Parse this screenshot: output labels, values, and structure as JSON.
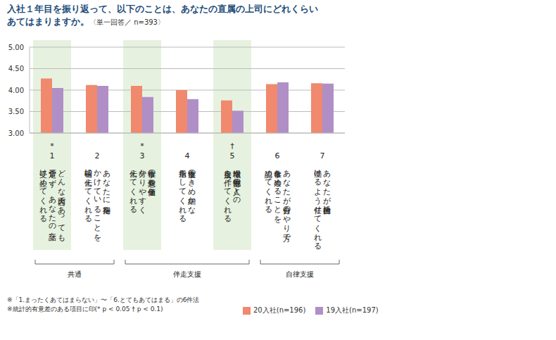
{
  "chart_data": {
    "type": "bar",
    "title": [
      "入社１年目を振り返って、以下のことは、あなたの直属の上司にどれくらい",
      "あてはまりますか。"
    ],
    "subtitle": "〈単一回答／ n=393〉",
    "categories": [
      "1",
      "2",
      "3",
      "4",
      "5",
      "6",
      "7"
    ],
    "category_texts": [
      [
        "どんな内容であっても",
        "否定せず、あなたの話を",
        "受け止めてくれる"
      ],
      [
        "あなたに期待を",
        "かけていることを",
        "明確に伝えてくれる"
      ],
      [
        "仕事の意義や価値を",
        "分かりやすく",
        "伝えてくれる"
      ],
      [
        "仕事上のきめ細かな",
        "指示をしてくれる"
      ],
      [
        "職場や他部署の人との",
        "接点を作ってくれる"
      ],
      [
        "あなたが自分のやり方で",
        "仕事を進めることを",
        "認めてくれる"
      ],
      [
        "あなたが自律的に",
        "働けるよう任せてくれる"
      ]
    ],
    "significance": [
      "*",
      null,
      "*",
      null,
      "†",
      null,
      null
    ],
    "groups": [
      {
        "label": "共通",
        "from": 0,
        "to": 1
      },
      {
        "label": "伴走支援",
        "from": 2,
        "to": 4
      },
      {
        "label": "自律支援",
        "from": 5,
        "to": 6
      }
    ],
    "series": [
      {
        "name": "20入社(n=196)",
        "color": "#f0896e",
        "values": [
          4.27,
          4.12,
          4.1,
          4.0,
          3.76,
          4.14,
          4.16
        ]
      },
      {
        "name": "19入社(n=197)",
        "color": "#b08fc7",
        "values": [
          4.05,
          4.1,
          3.84,
          3.79,
          3.52,
          4.18,
          4.15
        ]
      }
    ],
    "ylim": [
      3,
      5
    ],
    "yticks": [
      {
        "value": 3,
        "label": "3.00"
      },
      {
        "value": 3.5,
        "label": "3.50"
      },
      {
        "value": 4,
        "label": "4.00"
      },
      {
        "value": 4.5,
        "label": "4.50"
      },
      {
        "value": 5,
        "label": "5.00"
      }
    ],
    "grid": true,
    "notes": [
      "※「1.まったくあてはまらない」〜「6.とてもあてはまる」の6件法",
      "※統計的有意差のある項目に印(* p < 0.05 † p < 0.1)"
    ]
  }
}
